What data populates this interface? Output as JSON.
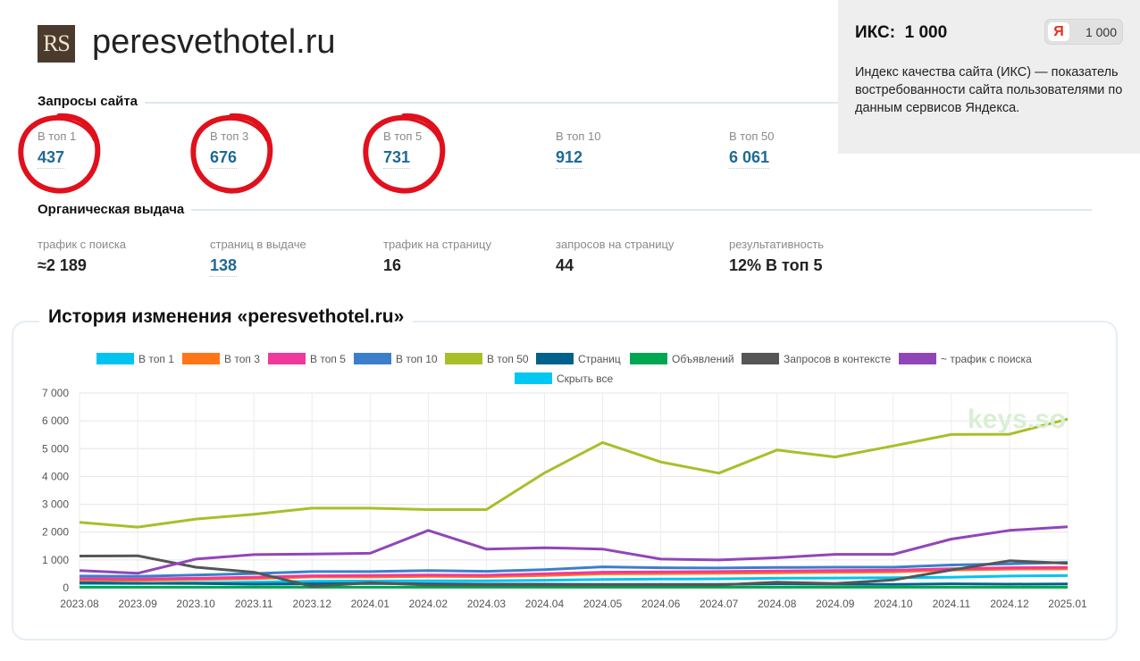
{
  "site": {
    "logo_text": "RS",
    "title": "peresvethotel.ru"
  },
  "iks": {
    "title": "ИКС:  1 000",
    "badge_letter": "Я",
    "badge_value": "1 000",
    "description": "Индекс качества сайта (ИКС) — показатель востребованности сайта пользователями по данным сервисов Яндекса."
  },
  "queries": {
    "heading": "Запросы сайта",
    "items": [
      {
        "label": "В топ 1",
        "value": "437"
      },
      {
        "label": "В топ 3",
        "value": "676"
      },
      {
        "label": "В топ 5",
        "value": "731"
      },
      {
        "label": "В топ 10",
        "value": "912"
      },
      {
        "label": "В топ 50",
        "value": "6 061"
      }
    ]
  },
  "organic": {
    "heading": "Органическая выдача",
    "items": [
      {
        "label": "трафик с поиска",
        "value": "≈2 189"
      },
      {
        "label": "страниц в выдаче",
        "value": "138"
      },
      {
        "label": "трафик на страницу",
        "value": "16"
      },
      {
        "label": "запросов на страницу",
        "value": "44"
      },
      {
        "label": "результативность",
        "value": "12% В топ 5"
      }
    ]
  },
  "history": {
    "title": "История изменения «peresvethotel.ru»"
  },
  "watermark": "keys.so",
  "chart_data": {
    "type": "line",
    "x": [
      "2023.08",
      "2023.09",
      "2023.10",
      "2023.11",
      "2023.12",
      "2024.01",
      "2024.02",
      "2024.03",
      "2024.04",
      "2024.05",
      "2024.06",
      "2024.07",
      "2024.08",
      "2024.09",
      "2024.10",
      "2024.11",
      "2024.12",
      "2025.01"
    ],
    "ylim": [
      0,
      7000
    ],
    "yticks": [
      "0",
      "1 000",
      "2 000",
      "3 000",
      "4 000",
      "5 000",
      "6 000",
      "7 000"
    ],
    "grid": true,
    "legend_position": "top",
    "hide_all_label": "Скрыть все",
    "hide_all_color": "#00c8f0",
    "series": [
      {
        "name": "В топ 1",
        "color": "#00c4ef",
        "values": [
          150,
          150,
          180,
          200,
          230,
          240,
          250,
          250,
          270,
          300,
          310,
          320,
          340,
          350,
          360,
          380,
          420,
          437
        ]
      },
      {
        "name": "В топ 3",
        "color": "#ff7518",
        "values": [
          280,
          270,
          300,
          330,
          390,
          390,
          410,
          400,
          440,
          500,
          510,
          520,
          540,
          560,
          570,
          640,
          670,
          676
        ]
      },
      {
        "name": "В топ 5",
        "color": "#f0399a",
        "values": [
          320,
          310,
          340,
          380,
          430,
          440,
          460,
          450,
          500,
          560,
          570,
          580,
          600,
          620,
          630,
          680,
          720,
          731
        ]
      },
      {
        "name": "В топ 10",
        "color": "#3b7fcb",
        "values": [
          420,
          410,
          460,
          510,
          580,
          580,
          620,
          590,
          650,
          750,
          720,
          710,
          730,
          740,
          740,
          820,
          860,
          912
        ]
      },
      {
        "name": "В топ 50",
        "color": "#a8bf2a",
        "values": [
          2350,
          2180,
          2470,
          2640,
          2860,
          2860,
          2810,
          2810,
          4130,
          5220,
          4520,
          4120,
          4950,
          4700,
          5100,
          5510,
          5520,
          6061
        ]
      },
      {
        "name": "Страниц",
        "color": "#00628a",
        "values": [
          180,
          160,
          150,
          130,
          140,
          150,
          140,
          130,
          130,
          120,
          120,
          120,
          140,
          130,
          120,
          140,
          130,
          138
        ]
      },
      {
        "name": "Объявлений",
        "color": "#00a651",
        "values": [
          20,
          20,
          20,
          20,
          20,
          20,
          20,
          20,
          20,
          20,
          20,
          20,
          20,
          20,
          20,
          20,
          20,
          20
        ]
      },
      {
        "name": "Запросов в контексте",
        "color": "#555555",
        "values": [
          1140,
          1150,
          740,
          560,
          50,
          180,
          100,
          100,
          100,
          100,
          100,
          100,
          200,
          150,
          280,
          640,
          970,
          880
        ]
      },
      {
        "name": "~ трафик с поиска",
        "color": "#9146b8",
        "values": [
          620,
          520,
          1030,
          1190,
          1210,
          1240,
          2060,
          1390,
          1440,
          1390,
          1030,
          1000,
          1080,
          1200,
          1200,
          1750,
          2060,
          2189
        ]
      }
    ]
  }
}
